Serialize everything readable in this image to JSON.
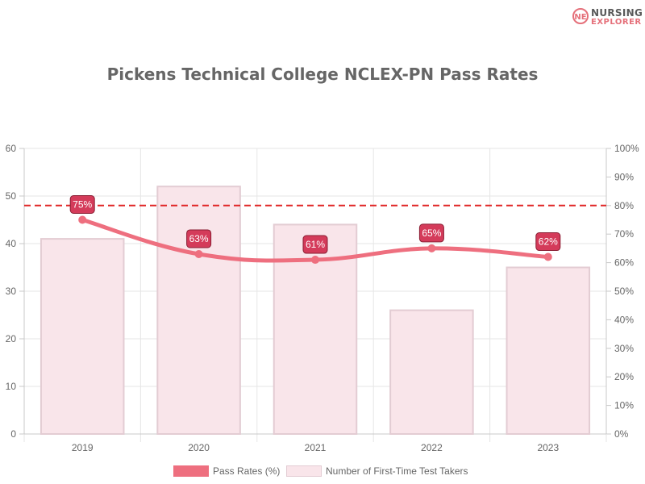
{
  "brand": {
    "line1": "NURSING",
    "line2": "EXPLORER",
    "mark": "NE"
  },
  "chart_data": {
    "type": "bar",
    "title": "Pickens Technical College NCLEX-PN Pass Rates",
    "categories": [
      "2019",
      "2020",
      "2021",
      "2022",
      "2023"
    ],
    "series": [
      {
        "name": "Pass Rates (%)",
        "kind": "line",
        "axis": "right",
        "values": [
          75,
          63,
          61,
          65,
          62
        ],
        "color": "#ee6f7f"
      },
      {
        "name": "Number of First-Time Test Takers",
        "kind": "bar",
        "axis": "left",
        "values": [
          41,
          52,
          44,
          26,
          35
        ],
        "color": "#f9e5ea",
        "border": "#e3ccd3"
      }
    ],
    "left_axis": {
      "ylim": [
        0,
        60
      ],
      "ticks": [
        "0",
        "10",
        "20",
        "30",
        "40",
        "50",
        "60"
      ]
    },
    "right_axis": {
      "ylim": [
        0,
        100
      ],
      "ticks": [
        "0%",
        "10%",
        "20%",
        "30%",
        "40%",
        "50%",
        "60%",
        "70%",
        "80%",
        "90%",
        "100%"
      ]
    },
    "data_labels": [
      "75%",
      "63%",
      "61%",
      "65%",
      "62%"
    ],
    "reference_line": {
      "axis": "right",
      "value": 80,
      "style": "dashed",
      "color": "#e02424"
    },
    "grid": true,
    "legend_position": "bottom",
    "label_color": "#d43b5a"
  }
}
